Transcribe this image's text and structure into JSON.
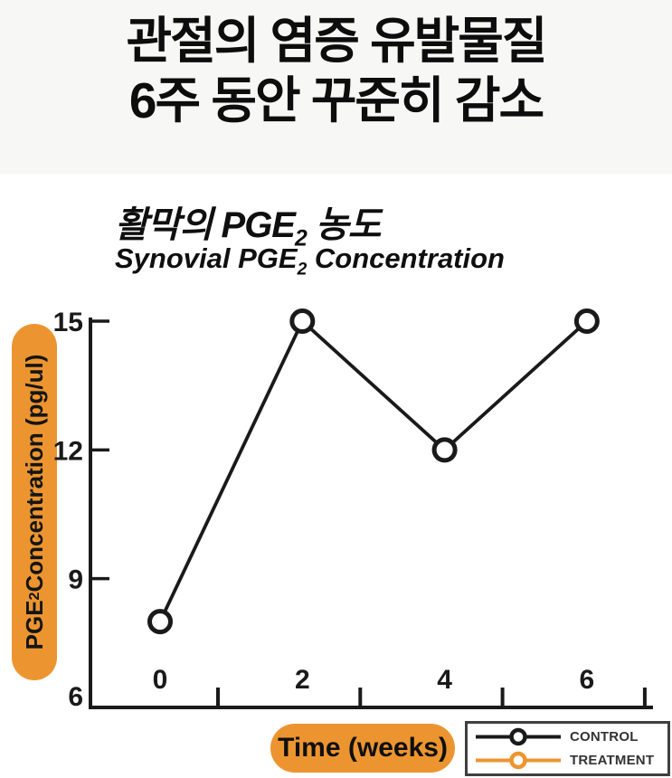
{
  "header": {
    "title_line1": "관절의 염증 유발물질",
    "title_line2": "6주 동안 꾸준히 감소"
  },
  "chart": {
    "title_ko": {
      "pre": "활막의 PGE",
      "sub": "2",
      "post": "  농도"
    },
    "title_en": {
      "pre": "Synovial PGE",
      "sub": "2",
      "post": " Concentration"
    },
    "y_axis_label": {
      "pre": "PGE",
      "sub": "2",
      "post": " Concentration (pg/ul)"
    }
  },
  "colors": {
    "accent_orange": "#EC9530",
    "ink_black": "#1a1a1a",
    "legend_border_gray": "#3f3f3f",
    "headline_band_bg": "#f7f7f6"
  },
  "chart_data": {
    "type": "line",
    "title_ko": "활막의 PGE2 농도",
    "title_en": "Synovial PGE2 Concentration",
    "x": [
      0,
      2,
      4,
      6
    ],
    "xlabel": "Time (weeks)",
    "ylabel": "PGE2 Concentration (pg/ul)",
    "ylim": [
      6,
      15
    ],
    "yticks": [
      6,
      9,
      12,
      15
    ],
    "grid": false,
    "legend_position": "bottom-right-outside",
    "series": [
      {
        "name": "CONTROL",
        "color": "#1a1a1a",
        "values": [
          8,
          15,
          12,
          15
        ],
        "marker": "open-circle",
        "visible_in_plot": true
      },
      {
        "name": "TREATMENT",
        "color": "#EC9530",
        "values": [],
        "marker": "open-circle",
        "visible_in_plot": false
      }
    ]
  }
}
